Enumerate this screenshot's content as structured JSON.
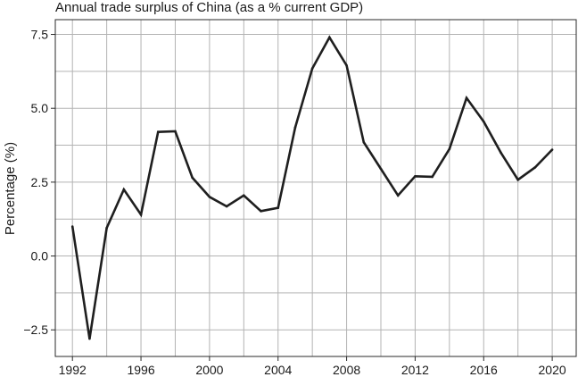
{
  "chart_data": {
    "type": "line",
    "title": "Annual trade surplus of China (as a % current GDP)",
    "xlabel": "",
    "ylabel": "Percentage (%)",
    "x": [
      1992,
      1993,
      1994,
      1995,
      1996,
      1997,
      1998,
      1999,
      2000,
      2001,
      2002,
      2003,
      2004,
      2005,
      2006,
      2007,
      2008,
      2009,
      2010,
      2011,
      2012,
      2013,
      2014,
      2015,
      2016,
      2017,
      2018,
      2019,
      2020
    ],
    "series": [
      {
        "values": [
          1.0,
          -2.8,
          0.95,
          2.25,
          1.4,
          4.2,
          4.22,
          2.65,
          2.0,
          1.68,
          2.05,
          1.52,
          1.63,
          4.35,
          6.35,
          7.4,
          6.45,
          3.85,
          2.95,
          2.05,
          2.7,
          2.68,
          3.62,
          5.35,
          4.55,
          3.5,
          2.58,
          3.0,
          3.6
        ]
      }
    ],
    "xticks": [
      "1992",
      "1996",
      "2000",
      "2004",
      "2008",
      "2012",
      "2016",
      "2020"
    ],
    "yticks": [
      "7.5",
      "5.0",
      "2.5",
      "0.0",
      "−2.5"
    ],
    "xlim": [
      1991,
      2021.4
    ],
    "ylim": [
      -3.4,
      8.0
    ],
    "grid": true,
    "line_color": "#1f1f1f"
  }
}
